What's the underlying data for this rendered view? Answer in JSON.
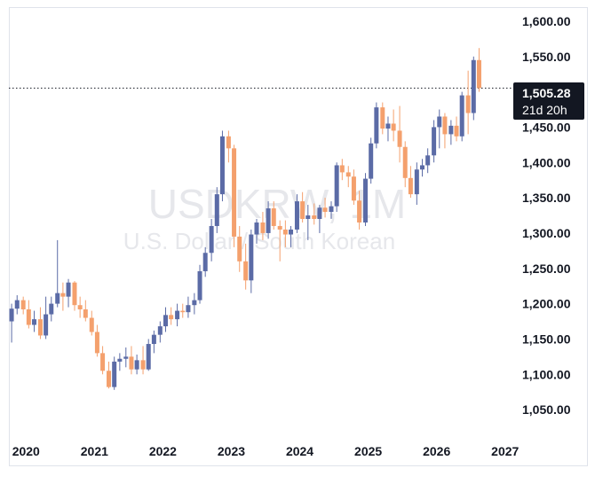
{
  "watermark": {
    "symbol": "USDKRW, 1M",
    "description": "U.S. Dollar / South Korean"
  },
  "price_tag": {
    "value": "1,505.28",
    "countdown": "21d 20h"
  },
  "colors": {
    "up": "#5b6ba6",
    "down": "#f4a06d",
    "tag_bg": "#131722",
    "grid_line": "#131722"
  },
  "chart_data": {
    "type": "candlestick",
    "title": "",
    "xlabel": "",
    "ylabel": "",
    "ylim": [
      1015,
      1620
    ],
    "x_range": [
      2019.75,
      2027.12
    ],
    "y_ticks": [
      "1,050.00",
      "1,100.00",
      "1,150.00",
      "1,200.00",
      "1,250.00",
      "1,300.00",
      "1,350.00",
      "1,400.00",
      "1,450.00",
      "1,500.00",
      "1,550.00",
      "1,600.00"
    ],
    "y_tick_values": [
      1050,
      1100,
      1150,
      1200,
      1250,
      1300,
      1350,
      1400,
      1450,
      1500,
      1550,
      1600
    ],
    "x_ticks": [
      "2020",
      "2021",
      "2022",
      "2023",
      "2024",
      "2025",
      "2026",
      "2027"
    ],
    "x_tick_values": [
      2020,
      2021,
      2022,
      2023,
      2024,
      2025,
      2026,
      2027
    ],
    "current_price": 1505.28,
    "ohlc_fields": [
      "t",
      "open",
      "high",
      "low",
      "close"
    ],
    "candles": [
      [
        2019.79,
        1175,
        1200,
        1145,
        1193
      ],
      [
        2019.87,
        1193,
        1212,
        1185,
        1205
      ],
      [
        2019.96,
        1205,
        1210,
        1185,
        1192
      ],
      [
        2020.04,
        1192,
        1205,
        1165,
        1170
      ],
      [
        2020.12,
        1170,
        1190,
        1160,
        1178
      ],
      [
        2020.21,
        1178,
        1195,
        1150,
        1155
      ],
      [
        2020.29,
        1155,
        1210,
        1150,
        1185
      ],
      [
        2020.37,
        1185,
        1210,
        1175,
        1200
      ],
      [
        2020.46,
        1200,
        1290,
        1195,
        1215
      ],
      [
        2020.54,
        1215,
        1230,
        1190,
        1210
      ],
      [
        2020.62,
        1210,
        1235,
        1195,
        1230
      ],
      [
        2020.71,
        1230,
        1232,
        1190,
        1198
      ],
      [
        2020.79,
        1198,
        1210,
        1180,
        1192
      ],
      [
        2020.87,
        1192,
        1205,
        1175,
        1180
      ],
      [
        2020.96,
        1180,
        1190,
        1155,
        1160
      ],
      [
        2021.04,
        1160,
        1170,
        1125,
        1130
      ],
      [
        2021.12,
        1130,
        1140,
        1100,
        1105
      ],
      [
        2021.21,
        1105,
        1118,
        1080,
        1082
      ],
      [
        2021.29,
        1082,
        1125,
        1078,
        1118
      ],
      [
        2021.37,
        1118,
        1130,
        1105,
        1122
      ],
      [
        2021.46,
        1122,
        1138,
        1110,
        1125
      ],
      [
        2021.54,
        1125,
        1140,
        1100,
        1107
      ],
      [
        2021.62,
        1107,
        1128,
        1100,
        1120
      ],
      [
        2021.71,
        1120,
        1140,
        1100,
        1107
      ],
      [
        2021.79,
        1107,
        1150,
        1105,
        1143
      ],
      [
        2021.87,
        1143,
        1162,
        1130,
        1156
      ],
      [
        2021.96,
        1156,
        1175,
        1145,
        1168
      ],
      [
        2022.04,
        1168,
        1195,
        1160,
        1184
      ],
      [
        2022.12,
        1184,
        1195,
        1170,
        1178
      ],
      [
        2022.21,
        1178,
        1200,
        1168,
        1190
      ],
      [
        2022.29,
        1190,
        1200,
        1180,
        1188
      ],
      [
        2022.37,
        1188,
        1210,
        1180,
        1198
      ],
      [
        2022.46,
        1198,
        1215,
        1185,
        1205
      ],
      [
        2022.54,
        1205,
        1255,
        1200,
        1246
      ],
      [
        2022.62,
        1246,
        1280,
        1238,
        1272
      ],
      [
        2022.71,
        1272,
        1320,
        1260,
        1310
      ],
      [
        2022.79,
        1310,
        1365,
        1300,
        1355
      ],
      [
        2022.87,
        1355,
        1445,
        1345,
        1437
      ],
      [
        2022.96,
        1437,
        1445,
        1400,
        1420
      ],
      [
        2023.04,
        1420,
        1425,
        1280,
        1295
      ],
      [
        2023.12,
        1295,
        1310,
        1245,
        1260
      ],
      [
        2023.21,
        1260,
        1285,
        1220,
        1233
      ],
      [
        2023.29,
        1233,
        1305,
        1215,
        1298
      ],
      [
        2023.37,
        1298,
        1320,
        1285,
        1315
      ],
      [
        2023.46,
        1315,
        1330,
        1290,
        1300
      ],
      [
        2023.54,
        1300,
        1345,
        1292,
        1335
      ],
      [
        2023.62,
        1335,
        1345,
        1305,
        1310
      ],
      [
        2023.71,
        1310,
        1318,
        1260,
        1305
      ],
      [
        2023.79,
        1305,
        1318,
        1280,
        1298
      ],
      [
        2023.87,
        1298,
        1310,
        1280,
        1305
      ],
      [
        2023.96,
        1305,
        1355,
        1300,
        1345
      ],
      [
        2024.04,
        1345,
        1358,
        1315,
        1320
      ],
      [
        2024.12,
        1320,
        1340,
        1290,
        1325
      ],
      [
        2024.21,
        1325,
        1342,
        1312,
        1320
      ],
      [
        2024.29,
        1320,
        1340,
        1300,
        1336
      ],
      [
        2024.37,
        1336,
        1350,
        1322,
        1330
      ],
      [
        2024.46,
        1330,
        1345,
        1320,
        1338
      ],
      [
        2024.54,
        1338,
        1400,
        1330,
        1396
      ],
      [
        2024.62,
        1396,
        1405,
        1375,
        1386
      ],
      [
        2024.71,
        1386,
        1395,
        1365,
        1380
      ],
      [
        2024.79,
        1380,
        1390,
        1340,
        1346
      ],
      [
        2024.87,
        1346,
        1360,
        1305,
        1315
      ],
      [
        2024.96,
        1315,
        1385,
        1310,
        1377
      ],
      [
        2025.04,
        1377,
        1435,
        1370,
        1427
      ],
      [
        2025.12,
        1427,
        1485,
        1420,
        1478
      ],
      [
        2025.21,
        1478,
        1485,
        1440,
        1448
      ],
      [
        2025.29,
        1448,
        1465,
        1430,
        1455
      ],
      [
        2025.37,
        1455,
        1475,
        1430,
        1445
      ],
      [
        2025.46,
        1445,
        1480,
        1400,
        1422
      ],
      [
        2025.54,
        1422,
        1430,
        1365,
        1378
      ],
      [
        2025.62,
        1378,
        1395,
        1350,
        1355
      ],
      [
        2025.71,
        1355,
        1400,
        1340,
        1390
      ],
      [
        2025.79,
        1390,
        1405,
        1380,
        1396
      ],
      [
        2025.87,
        1396,
        1420,
        1385,
        1410
      ],
      [
        2025.96,
        1410,
        1460,
        1400,
        1450
      ],
      [
        2026.04,
        1450,
        1475,
        1420,
        1465
      ],
      [
        2026.12,
        1465,
        1470,
        1420,
        1440
      ],
      [
        2026.21,
        1440,
        1460,
        1425,
        1452
      ],
      [
        2026.29,
        1452,
        1465,
        1430,
        1437
      ],
      [
        2026.37,
        1437,
        1500,
        1430,
        1495
      ],
      [
        2026.46,
        1495,
        1530,
        1440,
        1470
      ],
      [
        2026.54,
        1470,
        1550,
        1460,
        1545
      ],
      [
        2026.62,
        1545,
        1562,
        1500,
        1505.28
      ]
    ]
  }
}
